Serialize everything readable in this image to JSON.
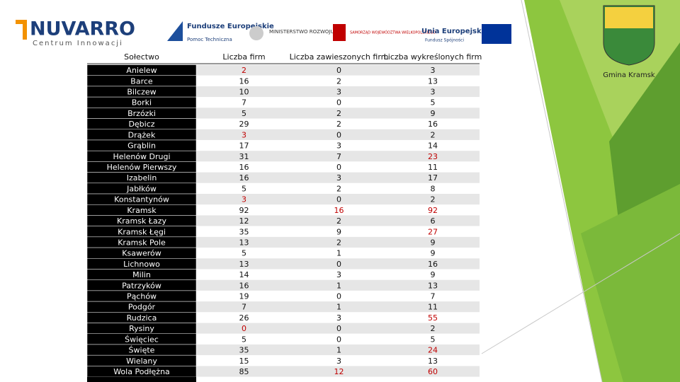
{
  "header": {
    "brand": "NUVARRO",
    "brand_sub": "Centrum Innowacji",
    "logos": [
      "Fundusze Europejskie",
      "Pomoc Techniczna",
      "MINISTERSTWO ROZWOJU",
      "SAMORZĄD WOJEWÓDZTWA WIELKOPOLSKIEGO",
      "Unia Europejska",
      "Fundusz Spójności"
    ],
    "municipality": "Gmina Kramsk"
  },
  "table": {
    "columns": [
      "Sołectwo",
      "Liczba firm",
      "Liczba zawieszonych firm",
      "Liczba wykreślonych firm"
    ],
    "rows": [
      [
        "Anielew",
        2,
        0,
        3
      ],
      [
        "Barce",
        16,
        2,
        13
      ],
      [
        "Bilczew",
        10,
        3,
        3
      ],
      [
        "Borki",
        7,
        0,
        5
      ],
      [
        "Brzózki",
        5,
        2,
        9
      ],
      [
        "Dębicz",
        29,
        2,
        16
      ],
      [
        "Drążek",
        3,
        0,
        2
      ],
      [
        "Grąblin",
        17,
        3,
        14
      ],
      [
        "Helenów Drugi",
        31,
        7,
        23
      ],
      [
        "Helenów Pierwszy",
        16,
        0,
        11
      ],
      [
        "Izabelin",
        16,
        3,
        17
      ],
      [
        "Jabłków",
        5,
        2,
        8
      ],
      [
        "Konstantynów",
        3,
        0,
        2
      ],
      [
        "Kramsk",
        92,
        16,
        92
      ],
      [
        "Kramsk Łazy",
        12,
        2,
        6
      ],
      [
        "Kramsk Łęgi",
        35,
        9,
        27
      ],
      [
        "Kramsk Pole",
        13,
        2,
        9
      ],
      [
        "Ksawerów",
        5,
        1,
        9
      ],
      [
        "Lichnowo",
        13,
        0,
        16
      ],
      [
        "Milin",
        14,
        3,
        9
      ],
      [
        "Patrzyków",
        16,
        1,
        13
      ],
      [
        "Pąchów",
        19,
        0,
        7
      ],
      [
        "Podgór",
        7,
        1,
        11
      ],
      [
        "Rudzica",
        26,
        3,
        55
      ],
      [
        "Rysiny",
        0,
        0,
        2
      ],
      [
        "Święciec",
        5,
        0,
        5
      ],
      [
        "Święte",
        35,
        1,
        24
      ],
      [
        "Wielany",
        15,
        3,
        13
      ],
      [
        "Wola Podłężna",
        85,
        12,
        60
      ]
    ],
    "highlight_color": "#c00000",
    "highlighted": [
      [
        0,
        1
      ],
      [
        6,
        1
      ],
      [
        8,
        3
      ],
      [
        12,
        1
      ],
      [
        13,
        2
      ],
      [
        13,
        3
      ],
      [
        15,
        3
      ],
      [
        23,
        3
      ],
      [
        24,
        1
      ],
      [
        26,
        3
      ],
      [
        28,
        2
      ],
      [
        28,
        3
      ]
    ]
  }
}
